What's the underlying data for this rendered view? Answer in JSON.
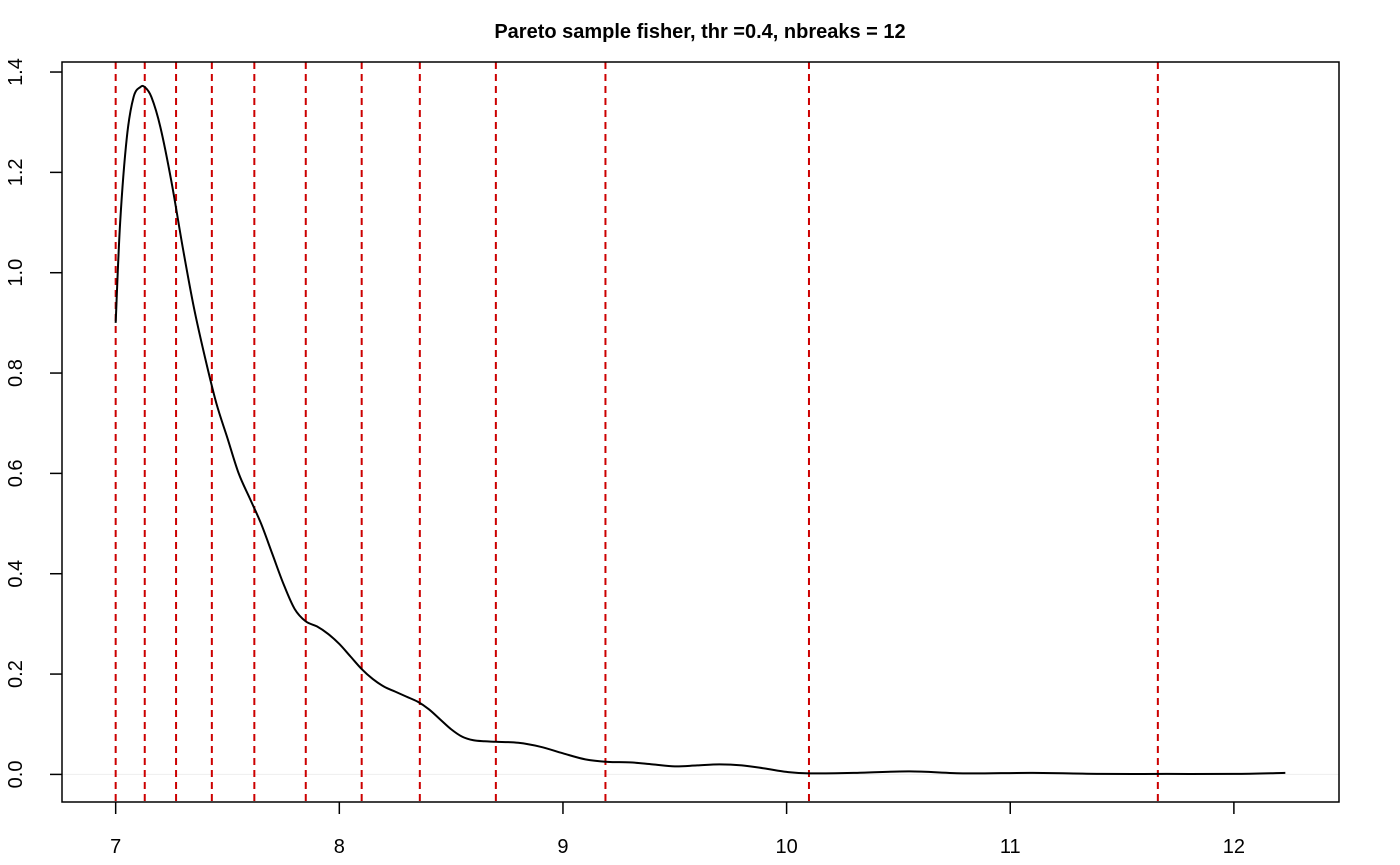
{
  "chart_data": {
    "type": "line",
    "title": "Pareto sample fisher, thr =0.4, nbreaks = 12",
    "xlabel": "",
    "ylabel": "",
    "xlim": [
      6.76,
      12.47
    ],
    "ylim": [
      -0.055,
      1.42
    ],
    "x_ticks": [
      7,
      8,
      9,
      10,
      11,
      12
    ],
    "x_tick_labels": [
      "7",
      "8",
      "9",
      "10",
      "11",
      "12"
    ],
    "y_ticks": [
      0,
      0.2,
      0.4,
      0.6,
      0.8,
      1.0,
      1.2,
      1.4
    ],
    "y_tick_labels": [
      "0.0",
      "0.2",
      "0.4",
      "0.6",
      "0.8",
      "1.0",
      "1.2",
      "1.4"
    ],
    "grid": false,
    "baseline": 0,
    "baseline_color": "#eeeeee",
    "series": [
      {
        "x": [
          7.0,
          7.02,
          7.05,
          7.08,
          7.11,
          7.13,
          7.16,
          7.2,
          7.25,
          7.3,
          7.35,
          7.4,
          7.45,
          7.5,
          7.55,
          7.6,
          7.65,
          7.7,
          7.75,
          7.8,
          7.85,
          7.9,
          7.95,
          8.0,
          8.05,
          8.1,
          8.15,
          8.2,
          8.25,
          8.3,
          8.35,
          8.4,
          8.45,
          8.5,
          8.55,
          8.6,
          8.65,
          8.7,
          8.8,
          8.9,
          9.0,
          9.1,
          9.2,
          9.3,
          9.4,
          9.5,
          9.6,
          9.7,
          9.8,
          9.9,
          10.0,
          10.1,
          10.3,
          10.55,
          10.8,
          11.1,
          11.4,
          11.7,
          12.0,
          12.23
        ],
        "y": [
          0.9,
          1.1,
          1.27,
          1.35,
          1.37,
          1.37,
          1.35,
          1.29,
          1.18,
          1.05,
          0.93,
          0.83,
          0.74,
          0.67,
          0.6,
          0.55,
          0.5,
          0.44,
          0.38,
          0.33,
          0.305,
          0.295,
          0.28,
          0.26,
          0.235,
          0.21,
          0.19,
          0.175,
          0.165,
          0.155,
          0.145,
          0.13,
          0.11,
          0.09,
          0.075,
          0.068,
          0.066,
          0.065,
          0.063,
          0.055,
          0.042,
          0.03,
          0.025,
          0.024,
          0.02,
          0.016,
          0.018,
          0.02,
          0.018,
          0.012,
          0.005,
          0.002,
          0.003,
          0.006,
          0.002,
          0.003,
          0.001,
          0.001,
          0.001,
          0.003
        ],
        "color": "#000000"
      }
    ],
    "breaks": [
      7.0,
      7.13,
      7.27,
      7.43,
      7.62,
      7.85,
      8.1,
      8.36,
      8.7,
      9.19,
      10.1,
      11.66
    ],
    "break_color": "#cc0000"
  }
}
